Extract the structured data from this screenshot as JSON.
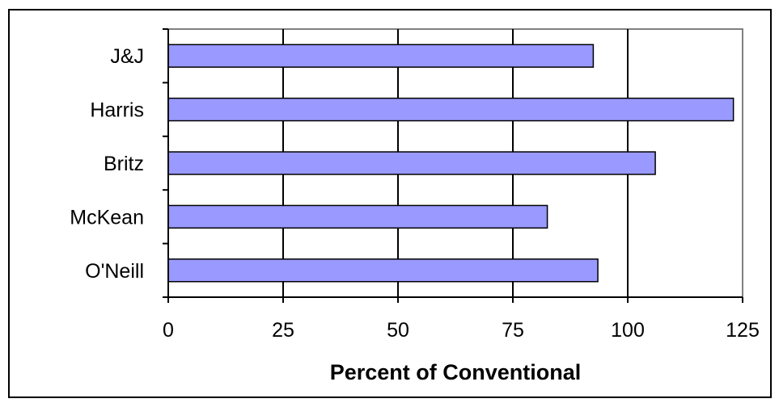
{
  "chart_data": {
    "type": "bar",
    "orientation": "horizontal",
    "categories": [
      "J&J",
      "Harris",
      "Britz",
      "McKean",
      "O'Neill"
    ],
    "values": [
      92.5,
      123,
      106,
      82.5,
      93.5
    ],
    "xlabel": "Percent of Conventional",
    "ylabel": "",
    "xlim": [
      0,
      125
    ],
    "xticks": [
      0,
      25,
      50,
      75,
      100,
      125
    ],
    "grid": "vertical",
    "legend": "none",
    "bar_color": "#9999ff",
    "bar_edge_color": "#000000"
  }
}
